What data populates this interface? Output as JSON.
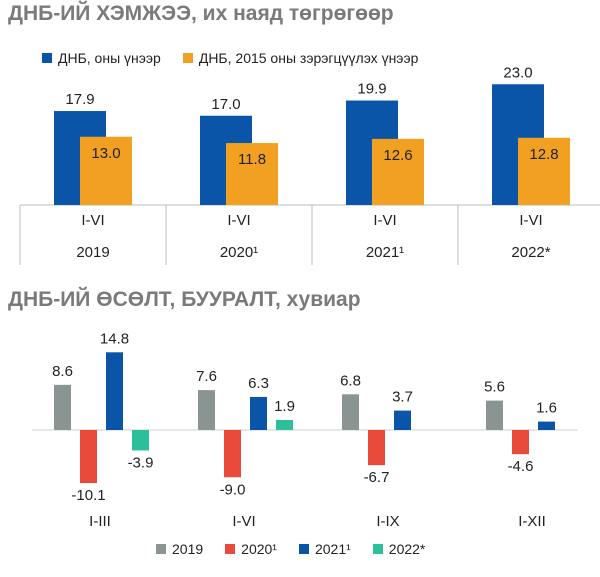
{
  "chart_data": [
    {
      "type": "bar",
      "title": "ДНБ-ИЙ ХЭМЖЭЭ, их наяд төгрөгөөр",
      "categories": [
        "I-VI",
        "I-VI",
        "I-VI",
        "I-VI"
      ],
      "years": [
        "2019",
        "2020¹",
        "2021¹",
        "2022*"
      ],
      "series": [
        {
          "name": "ДНБ, оны үнээр",
          "color": "#0a55a8",
          "values": [
            17.9,
            17.0,
            19.9,
            23.0
          ],
          "labels": [
            "17.9",
            "17.0",
            "19.9",
            "23.0"
          ]
        },
        {
          "name": "ДНБ, 2015 оны зэрэгцүүлэх үнээр",
          "color": "#f2a022",
          "values": [
            13.0,
            11.8,
            12.6,
            12.8
          ],
          "labels": [
            "13.0",
            "11.8",
            "12.6",
            "12.8"
          ]
        }
      ],
      "legend": "top",
      "grid": false
    },
    {
      "type": "bar",
      "title": "ДНБ-ИЙ ӨСӨЛТ, БУУРАЛТ, хувиар",
      "categories": [
        "I-III",
        "I-VI",
        "I-IX",
        "I-XII"
      ],
      "series": [
        {
          "name": "2019",
          "color": "#8a9593",
          "values": [
            8.6,
            7.6,
            6.8,
            5.6
          ],
          "labels": [
            "8.6",
            "7.6",
            "6.8",
            "5.6"
          ]
        },
        {
          "name": "2020¹",
          "color": "#e84b3c",
          "values": [
            -10.1,
            -9.0,
            -6.7,
            -4.6
          ],
          "labels": [
            "-10.1",
            "-9.0",
            "-6.7",
            "-4.6"
          ]
        },
        {
          "name": "2021¹",
          "color": "#0a55a8",
          "values": [
            14.8,
            6.3,
            3.7,
            1.6
          ],
          "labels": [
            "14.8",
            "6.3",
            "3.7",
            "1.6"
          ]
        },
        {
          "name": "2022*",
          "color": "#2bbf9a",
          "values": [
            -3.9,
            1.9,
            null,
            null
          ],
          "labels": [
            "-3.9",
            "1.9",
            null,
            null
          ]
        }
      ],
      "legend": "bottom",
      "grid": false
    }
  ]
}
